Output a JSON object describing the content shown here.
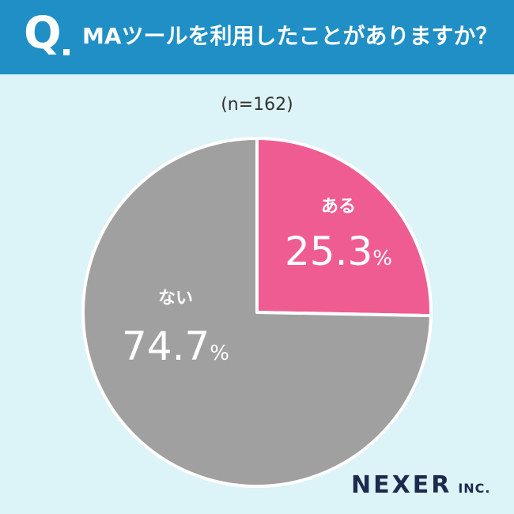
{
  "header": {
    "q_mark": "Q",
    "question": "MAツールを利用したことがありますか？"
  },
  "sample_size": "(n=162)",
  "chart_data": {
    "type": "pie",
    "title": "MAツールを利用したことがありますか？",
    "subtitle": "(n=162)",
    "unit": "%",
    "slices": [
      {
        "name": "ある",
        "value": 25.3,
        "color": "#ef5c91"
      },
      {
        "name": "ない",
        "value": 74.7,
        "color": "#a0a0a0"
      }
    ]
  },
  "logo": {
    "main": "NEXER",
    "sub": "INC."
  },
  "colors": {
    "header_bg": "#1f8fc6",
    "page_bg": "#dcf3f7"
  }
}
